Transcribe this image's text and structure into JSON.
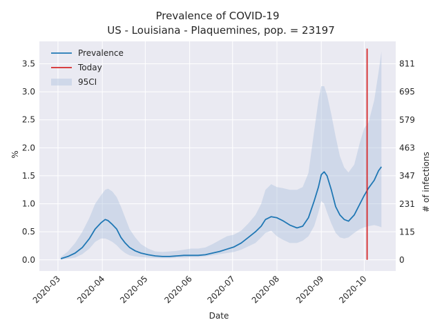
{
  "chart_data": {
    "type": "line",
    "title": "Prevalence of COVID-19",
    "subtitle": "US - Louisiana - Plaquemines, pop. = 23197",
    "xlabel": "Date",
    "ylabel": "%",
    "ylabel_right": "# of infections",
    "x_ticks": [
      "2020-03",
      "2020-04",
      "2020-05",
      "2020-06",
      "2020-07",
      "2020-08",
      "2020-09",
      "2020-10"
    ],
    "y_ticks": [
      0.0,
      0.5,
      1.0,
      1.5,
      2.0,
      2.5,
      3.0,
      3.5
    ],
    "y_tick_labels": [
      "0.0",
      "0.5",
      "1.0",
      "1.5",
      "2.0",
      "2.5",
      "3.0",
      "3.5"
    ],
    "y_right_ticks": [
      0,
      115,
      231,
      347,
      463,
      579,
      695,
      811
    ],
    "ylim": [
      -0.2,
      3.9
    ],
    "xlim": [
      "2020-02-17",
      "2020-10-23"
    ],
    "grid": true,
    "legend_position": "upper-left",
    "legend": [
      "Prevalence",
      "Today",
      "95CI"
    ],
    "colors": {
      "prevalence": "#1f77b4",
      "today": "#d62728",
      "ci": "#b0c4de",
      "grid": "#ffffff",
      "background": "#eaeaf2"
    },
    "today": "2020-10-03",
    "today_range": [
      0.0,
      3.77
    ],
    "series": [
      {
        "name": "Prevalence",
        "x": [
          "2020-03-03",
          "2020-03-08",
          "2020-03-13",
          "2020-03-18",
          "2020-03-23",
          "2020-03-27",
          "2020-03-31",
          "2020-04-03",
          "2020-04-05",
          "2020-04-08",
          "2020-04-11",
          "2020-04-14",
          "2020-04-17",
          "2020-04-20",
          "2020-04-24",
          "2020-04-28",
          "2020-05-03",
          "2020-05-08",
          "2020-05-13",
          "2020-05-18",
          "2020-05-23",
          "2020-05-28",
          "2020-06-02",
          "2020-06-07",
          "2020-06-12",
          "2020-06-17",
          "2020-06-22",
          "2020-06-27",
          "2020-07-02",
          "2020-07-07",
          "2020-07-12",
          "2020-07-17",
          "2020-07-21",
          "2020-07-24",
          "2020-07-28",
          "2020-08-01",
          "2020-08-05",
          "2020-08-10",
          "2020-08-15",
          "2020-08-19",
          "2020-08-23",
          "2020-08-27",
          "2020-08-30",
          "2020-09-01",
          "2020-09-03",
          "2020-09-05",
          "2020-09-08",
          "2020-09-11",
          "2020-09-14",
          "2020-09-17",
          "2020-09-20",
          "2020-09-24",
          "2020-09-28",
          "2020-10-01",
          "2020-10-04",
          "2020-10-08",
          "2020-10-11",
          "2020-10-13"
        ],
        "values": [
          0.02,
          0.06,
          0.12,
          0.22,
          0.38,
          0.55,
          0.66,
          0.72,
          0.7,
          0.63,
          0.55,
          0.4,
          0.3,
          0.22,
          0.16,
          0.12,
          0.09,
          0.07,
          0.06,
          0.06,
          0.07,
          0.08,
          0.08,
          0.08,
          0.09,
          0.12,
          0.15,
          0.19,
          0.23,
          0.3,
          0.4,
          0.5,
          0.6,
          0.72,
          0.77,
          0.75,
          0.7,
          0.62,
          0.57,
          0.6,
          0.75,
          1.05,
          1.3,
          1.52,
          1.57,
          1.5,
          1.25,
          0.95,
          0.8,
          0.72,
          0.69,
          0.8,
          1.0,
          1.15,
          1.28,
          1.42,
          1.59,
          1.66
        ]
      },
      {
        "name": "95CI",
        "x": [
          "2020-03-03",
          "2020-03-08",
          "2020-03-13",
          "2020-03-18",
          "2020-03-23",
          "2020-03-27",
          "2020-03-31",
          "2020-04-03",
          "2020-04-05",
          "2020-04-08",
          "2020-04-11",
          "2020-04-14",
          "2020-04-17",
          "2020-04-20",
          "2020-04-24",
          "2020-04-28",
          "2020-05-03",
          "2020-05-08",
          "2020-05-13",
          "2020-05-18",
          "2020-05-23",
          "2020-05-28",
          "2020-06-02",
          "2020-06-07",
          "2020-06-12",
          "2020-06-17",
          "2020-06-22",
          "2020-06-27",
          "2020-07-02",
          "2020-07-07",
          "2020-07-12",
          "2020-07-17",
          "2020-07-21",
          "2020-07-24",
          "2020-07-28",
          "2020-08-01",
          "2020-08-05",
          "2020-08-10",
          "2020-08-15",
          "2020-08-19",
          "2020-08-23",
          "2020-08-27",
          "2020-08-30",
          "2020-09-01",
          "2020-09-03",
          "2020-09-05",
          "2020-09-08",
          "2020-09-11",
          "2020-09-14",
          "2020-09-17",
          "2020-09-20",
          "2020-09-24",
          "2020-09-28",
          "2020-10-01",
          "2020-10-04",
          "2020-10-08",
          "2020-10-11",
          "2020-10-13"
        ],
        "lower": [
          0.0,
          0.02,
          0.04,
          0.1,
          0.2,
          0.32,
          0.38,
          0.38,
          0.36,
          0.32,
          0.26,
          0.18,
          0.12,
          0.08,
          0.06,
          0.05,
          0.04,
          0.03,
          0.03,
          0.03,
          0.04,
          0.04,
          0.05,
          0.05,
          0.06,
          0.08,
          0.1,
          0.12,
          0.14,
          0.18,
          0.24,
          0.3,
          0.4,
          0.48,
          0.52,
          0.42,
          0.36,
          0.3,
          0.3,
          0.34,
          0.42,
          0.6,
          0.85,
          1.05,
          1.0,
          0.85,
          0.65,
          0.48,
          0.4,
          0.38,
          0.4,
          0.48,
          0.55,
          0.58,
          0.6,
          0.62,
          0.6,
          0.58
        ],
        "upper": [
          0.05,
          0.15,
          0.3,
          0.5,
          0.75,
          1.0,
          1.15,
          1.25,
          1.27,
          1.22,
          1.12,
          0.95,
          0.75,
          0.55,
          0.4,
          0.28,
          0.2,
          0.15,
          0.14,
          0.15,
          0.16,
          0.18,
          0.2,
          0.2,
          0.22,
          0.28,
          0.35,
          0.42,
          0.45,
          0.52,
          0.65,
          0.8,
          1.0,
          1.25,
          1.35,
          1.3,
          1.28,
          1.25,
          1.25,
          1.3,
          1.55,
          2.3,
          2.85,
          3.1,
          3.1,
          2.95,
          2.6,
          2.2,
          1.85,
          1.65,
          1.56,
          1.7,
          2.1,
          2.35,
          2.45,
          2.85,
          3.35,
          3.72
        ]
      }
    ]
  }
}
